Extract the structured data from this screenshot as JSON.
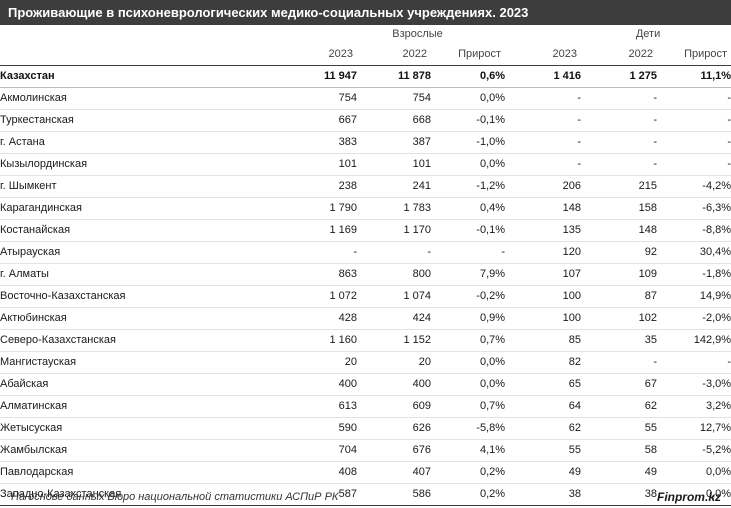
{
  "title": "Проживающие в психоневрологических медико-социальных учреждениях. 2023",
  "groups": {
    "adults": "Взрослые",
    "children": "Дети"
  },
  "columns": [
    "2023",
    "2022",
    "Прирост",
    "2023",
    "2022",
    "Прирост"
  ],
  "rows": [
    {
      "region": "Казахстан",
      "a23": "11 947",
      "a22": "11 878",
      "ag": "0,6%",
      "c23": "1 416",
      "c22": "1 275",
      "cg": "11,1%"
    },
    {
      "region": "Акмолинская",
      "a23": "754",
      "a22": "754",
      "ag": "0,0%",
      "c23": "-",
      "c22": "-",
      "cg": "-"
    },
    {
      "region": "Туркестанская",
      "a23": "667",
      "a22": "668",
      "ag": "-0,1%",
      "c23": "-",
      "c22": "-",
      "cg": "-"
    },
    {
      "region": "г. Астана",
      "a23": "383",
      "a22": "387",
      "ag": "-1,0%",
      "c23": "-",
      "c22": "-",
      "cg": "-"
    },
    {
      "region": "Кызылординская",
      "a23": "101",
      "a22": "101",
      "ag": "0,0%",
      "c23": "-",
      "c22": "-",
      "cg": "-"
    },
    {
      "region": "г. Шымкент",
      "a23": "238",
      "a22": "241",
      "ag": "-1,2%",
      "c23": "206",
      "c22": "215",
      "cg": "-4,2%"
    },
    {
      "region": "Карагандинская",
      "a23": "1 790",
      "a22": "1 783",
      "ag": "0,4%",
      "c23": "148",
      "c22": "158",
      "cg": "-6,3%"
    },
    {
      "region": "Костанайская",
      "a23": "1 169",
      "a22": "1 170",
      "ag": "-0,1%",
      "c23": "135",
      "c22": "148",
      "cg": "-8,8%"
    },
    {
      "region": "Атырауская",
      "a23": "-",
      "a22": "-",
      "ag": "-",
      "c23": "120",
      "c22": "92",
      "cg": "30,4%"
    },
    {
      "region": "г. Алматы",
      "a23": "863",
      "a22": "800",
      "ag": "7,9%",
      "c23": "107",
      "c22": "109",
      "cg": "-1,8%"
    },
    {
      "region": "Восточно-Казахстанская",
      "a23": "1 072",
      "a22": "1 074",
      "ag": "-0,2%",
      "c23": "100",
      "c22": "87",
      "cg": "14,9%"
    },
    {
      "region": "Актюбинская",
      "a23": "428",
      "a22": "424",
      "ag": "0,9%",
      "c23": "100",
      "c22": "102",
      "cg": "-2,0%"
    },
    {
      "region": "Северо-Казахстанская",
      "a23": "1 160",
      "a22": "1 152",
      "ag": "0,7%",
      "c23": "85",
      "c22": "35",
      "cg": "142,9%"
    },
    {
      "region": "Мангистауская",
      "a23": "20",
      "a22": "20",
      "ag": "0,0%",
      "c23": "82",
      "c22": "-",
      "cg": "-"
    },
    {
      "region": "Абайская",
      "a23": "400",
      "a22": "400",
      "ag": "0,0%",
      "c23": "65",
      "c22": "67",
      "cg": "-3,0%"
    },
    {
      "region": "Алматинская",
      "a23": "613",
      "a22": "609",
      "ag": "0,7%",
      "c23": "64",
      "c22": "62",
      "cg": "3,2%"
    },
    {
      "region": "Жетысуская",
      "a23": "590",
      "a22": "626",
      "ag": "-5,8%",
      "c23": "62",
      "c22": "55",
      "cg": "12,7%"
    },
    {
      "region": "Жамбылская",
      "a23": "704",
      "a22": "676",
      "ag": "4,1%",
      "c23": "55",
      "c22": "58",
      "cg": "-5,2%"
    },
    {
      "region": "Павлодарская",
      "a23": "408",
      "a22": "407",
      "ag": "0,2%",
      "c23": "49",
      "c22": "49",
      "cg": "0,0%"
    },
    {
      "region": "Западно-Казахстанская",
      "a23": "587",
      "a22": "586",
      "ag": "0,2%",
      "c23": "38",
      "c22": "38",
      "cg": "0,0%"
    }
  ],
  "footer": {
    "source": "На основе данных Бюро национальной статистики АСПиР РК",
    "brand": "Finprom.kz"
  },
  "colors": {
    "header_bg": "#3d3d3d",
    "header_text": "#ffffff",
    "row_divider": "#e3e3e3"
  }
}
